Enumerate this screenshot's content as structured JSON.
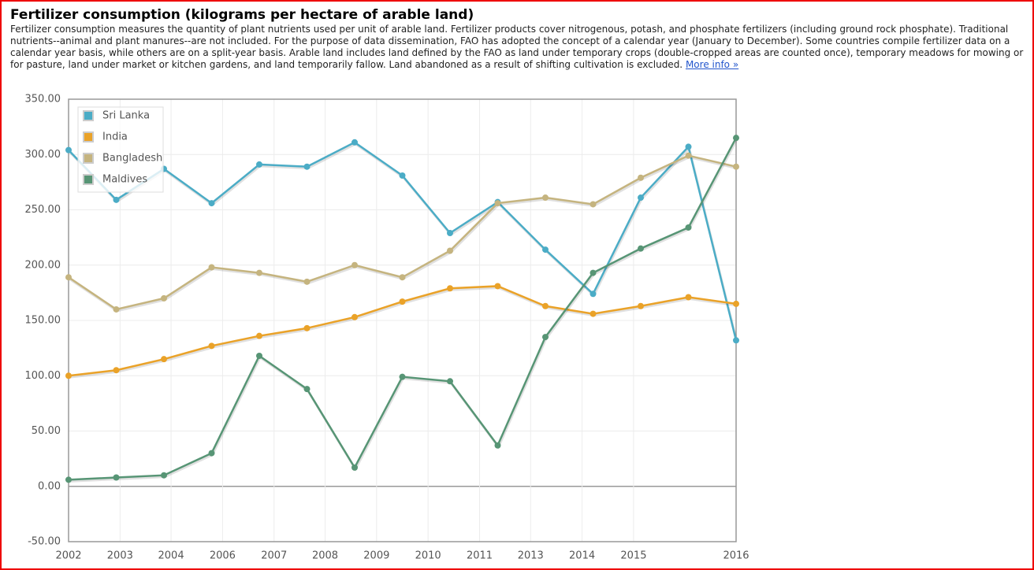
{
  "header": {
    "title": "Fertilizer consumption (kilograms per hectare of arable land)",
    "description": "Fertilizer consumption measures the quantity of plant nutrients used per unit of arable land. Fertilizer products cover nitrogenous, potash, and phosphate fertilizers (including ground rock phosphate). Traditional nutrients--animal and plant manures--are not included. For the purpose of data dissemination, FAO has adopted the concept of a calendar year (January to December). Some countries compile fertilizer data on a calendar year basis, while others are on a split-year basis. Arable land includes land defined by the FAO as land under temporary crops (double-cropped areas are counted once), temporary meadows for mowing or for pasture, land under market or kitchen gardens, and land temporarily fallow. Land abandoned as a result of shifting cultivation is excluded.",
    "link": "More info »"
  },
  "chart_data": {
    "type": "line",
    "x": [
      2002,
      2003,
      2004,
      2005,
      2006,
      2007,
      2008,
      2009,
      2010,
      2011,
      2012,
      2013,
      2014,
      2015,
      2016
    ],
    "series": [
      {
        "name": "Sri Lanka",
        "color": "#4bacc6",
        "values": [
          304,
          259,
          287,
          256,
          291,
          289,
          311,
          281,
          229,
          257,
          214,
          174,
          261,
          307,
          132
        ]
      },
      {
        "name": "India",
        "color": "#eaa228",
        "values": [
          100,
          105,
          115,
          127,
          136,
          143,
          153,
          167,
          179,
          181,
          163,
          156,
          163,
          171,
          165
        ]
      },
      {
        "name": "Bangladesh",
        "color": "#c5b47f",
        "values": [
          189,
          160,
          170,
          198,
          193,
          185,
          200,
          189,
          213,
          256,
          261,
          255,
          279,
          299,
          289
        ]
      },
      {
        "name": "Maldives",
        "color": "#579575",
        "values": [
          6,
          8,
          10,
          30,
          118,
          88,
          17,
          99,
          95,
          37,
          135,
          193,
          215,
          234,
          315
        ]
      }
    ],
    "xlim": [
      2002,
      2016
    ],
    "xticks": [
      {
        "value": 2002,
        "label": "2002"
      },
      {
        "value": 2003.08,
        "label": "2003"
      },
      {
        "value": 2004.15,
        "label": "2004"
      },
      {
        "value": 2005.23,
        "label": "2006"
      },
      {
        "value": 2006.31,
        "label": "2007"
      },
      {
        "value": 2007.38,
        "label": "2008"
      },
      {
        "value": 2008.46,
        "label": "2009"
      },
      {
        "value": 2009.54,
        "label": "2010"
      },
      {
        "value": 2010.62,
        "label": "2011"
      },
      {
        "value": 2011.69,
        "label": "2013"
      },
      {
        "value": 2012.77,
        "label": "2014"
      },
      {
        "value": 2013.85,
        "label": "2015"
      },
      {
        "value": 2016,
        "label": "2016"
      }
    ],
    "ylim": [
      -50,
      350
    ],
    "yticks": [
      {
        "value": -50,
        "label": "-50.00"
      },
      {
        "value": 0,
        "label": "0.00"
      },
      {
        "value": 50,
        "label": "50.00"
      },
      {
        "value": 100,
        "label": "100.00"
      },
      {
        "value": 150,
        "label": "150.00"
      },
      {
        "value": 200,
        "label": "200.00"
      },
      {
        "value": 250,
        "label": "250.00"
      },
      {
        "value": 300,
        "label": "300.00"
      },
      {
        "value": 350,
        "label": "350.00"
      }
    ],
    "grid": true,
    "legend": "top-left"
  }
}
